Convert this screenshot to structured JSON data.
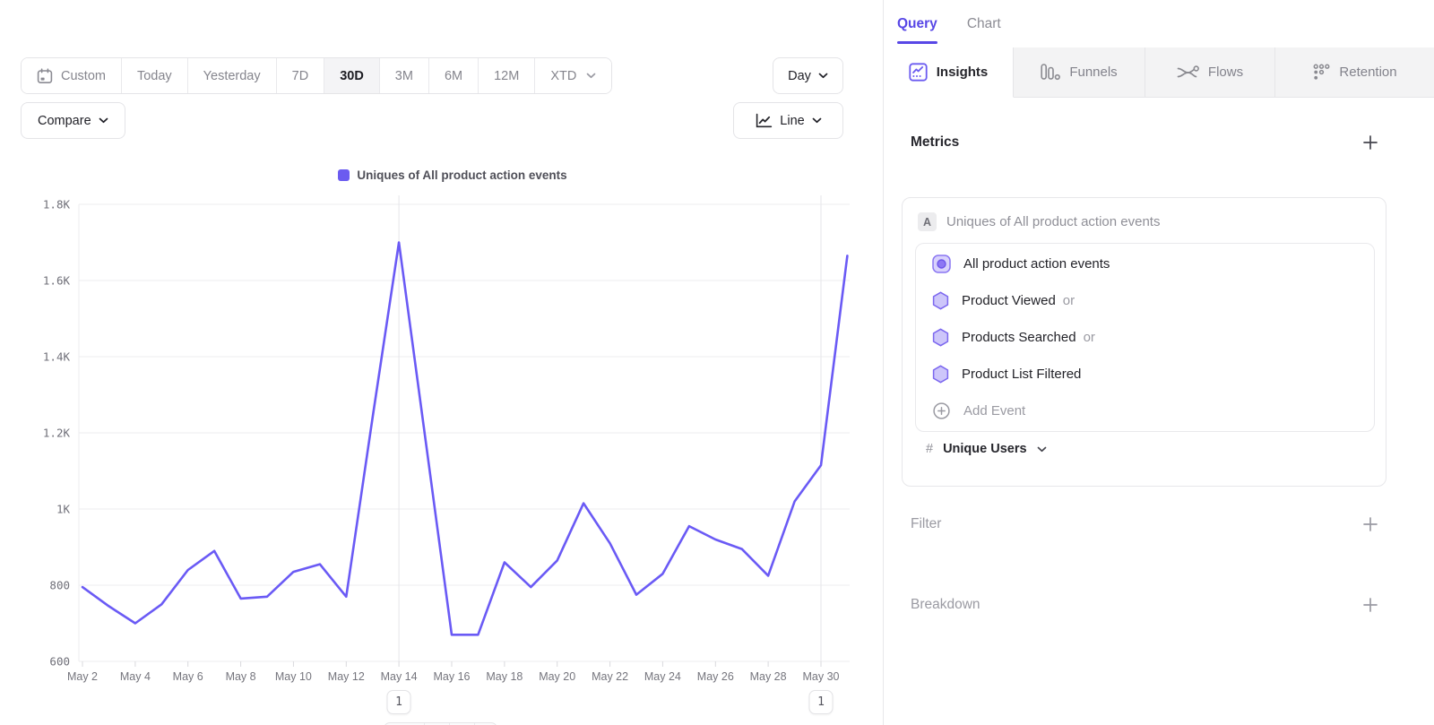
{
  "toolbar": {
    "ranges": [
      {
        "label": "Custom",
        "icon": "calendar"
      },
      {
        "label": "Today"
      },
      {
        "label": "Yesterday"
      },
      {
        "label": "7D"
      },
      {
        "label": "30D",
        "active": true
      },
      {
        "label": "3M"
      },
      {
        "label": "6M"
      },
      {
        "label": "12M"
      },
      {
        "label": "XTD",
        "chevron": true
      }
    ],
    "granularity_label": "Day",
    "compare_label": "Compare",
    "chart_type_label": "Line"
  },
  "chart_data": {
    "type": "line",
    "title": "Uniques of All product action events",
    "xlabel": "",
    "ylabel": "",
    "grid": true,
    "legend_position": "top-center",
    "legend": [
      {
        "label": "Uniques of All product action events",
        "color": "#6b5bf0"
      }
    ],
    "ylim": [
      600,
      1800
    ],
    "yticks": [
      {
        "v": 600,
        "label": "600"
      },
      {
        "v": 800,
        "label": "800"
      },
      {
        "v": 1000,
        "label": "1K"
      },
      {
        "v": 1200,
        "label": "1.2K"
      },
      {
        "v": 1400,
        "label": "1.4K"
      },
      {
        "v": 1600,
        "label": "1.6K"
      },
      {
        "v": 1800,
        "label": "1.8K"
      }
    ],
    "x": [
      "May 2",
      "May 3",
      "May 4",
      "May 5",
      "May 6",
      "May 7",
      "May 8",
      "May 9",
      "May 10",
      "May 11",
      "May 12",
      "May 13",
      "May 14",
      "May 15",
      "May 16",
      "May 17",
      "May 18",
      "May 19",
      "May 20",
      "May 21",
      "May 22",
      "May 23",
      "May 24",
      "May 25",
      "May 26",
      "May 27",
      "May 28",
      "May 29",
      "May 30",
      "May 31"
    ],
    "series": [
      {
        "name": "Uniques of All product action events",
        "color": "#6a5af5",
        "values": [
          795,
          745,
          700,
          750,
          840,
          890,
          765,
          770,
          835,
          855,
          770,
          1240,
          1700,
          1185,
          670,
          670,
          860,
          795,
          865,
          1015,
          910,
          775,
          830,
          955,
          920,
          895,
          825,
          1020,
          1115,
          1665
        ]
      }
    ],
    "annotations": [
      {
        "date": "May 14",
        "label": "1"
      },
      {
        "date": "May 30",
        "label": "1"
      }
    ]
  },
  "panel": {
    "tabs": [
      {
        "label": "Query",
        "active": true
      },
      {
        "label": "Chart"
      }
    ],
    "report_tabs": [
      {
        "label": "Insights",
        "icon": "insights",
        "active": true
      },
      {
        "label": "Funnels",
        "icon": "funnels"
      },
      {
        "label": "Flows",
        "icon": "flows"
      },
      {
        "label": "Retention",
        "icon": "retention"
      }
    ],
    "metrics": {
      "heading": "Metrics",
      "group_badge": "A",
      "group_label": "Uniques of All product action events",
      "events": [
        {
          "label": "All product action events",
          "icon": "custom-event",
          "suffix": ""
        },
        {
          "label": "Product Viewed",
          "icon": "hexagon",
          "suffix": "or"
        },
        {
          "label": "Products Searched",
          "icon": "hexagon",
          "suffix": "or"
        },
        {
          "label": "Product List Filtered",
          "icon": "hexagon",
          "suffix": ""
        }
      ],
      "add_event_label": "Add Event",
      "aggregation": {
        "prefix": "#",
        "label": "Unique Users"
      }
    },
    "sections": [
      {
        "label": "Filter"
      },
      {
        "label": "Breakdown"
      }
    ]
  }
}
